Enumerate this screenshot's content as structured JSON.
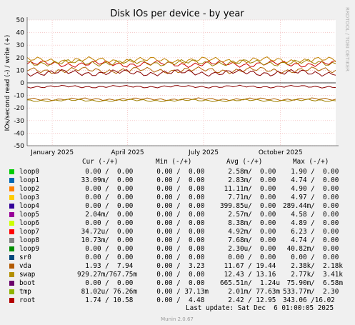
{
  "chart_data": {
    "type": "line",
    "title": "Disk IOs per device - by year",
    "ylabel": "IOs/second read (-) / write (+)",
    "side_label": "RRDTOOL / TOBI OETIKER",
    "ylim": [
      -50,
      50
    ],
    "yticks": [
      -50,
      -40,
      -30,
      -20,
      -10,
      0,
      10,
      20,
      30,
      40,
      50
    ],
    "x_range": [
      "2024-12-02",
      "2025-12-06"
    ],
    "xticks": [
      {
        "label": "January 2025",
        "date": "2025-01-01"
      },
      {
        "label": "April 2025",
        "date": "2025-04-01"
      },
      {
        "label": "July 2025",
        "date": "2025-07-01"
      },
      {
        "label": "October 2025",
        "date": "2025-10-01"
      }
    ],
    "grid": true,
    "series": [
      {
        "name": "loop7",
        "color": "#cc0000",
        "approx_levels": [
          {
            "from": "2024-12-02",
            "to": "2025-12-06",
            "write": 15,
            "read": 0
          }
        ]
      },
      {
        "name": "loop1",
        "color": "#c08000",
        "approx_levels": [
          {
            "from": "2024-12-02",
            "to": "2025-12-06",
            "write": 18,
            "read": 0
          }
        ]
      },
      {
        "name": "vda",
        "color": "#b06000",
        "approx_levels": [
          {
            "from": "2024-12-02",
            "to": "2025-12-06",
            "write": 10,
            "read": -13
          }
        ]
      },
      {
        "name": "tmp",
        "color": "#a08000",
        "approx_levels": [
          {
            "from": "2024-12-02",
            "to": "2025-12-06",
            "write": 16,
            "read": -14
          }
        ]
      },
      {
        "name": "root",
        "color": "#880000",
        "approx_levels": [
          {
            "from": "2024-12-02",
            "to": "2025-12-06",
            "write": 8,
            "read": -3
          }
        ]
      }
    ]
  },
  "footer": "Munin 2.0.67",
  "last_update": "Last update: Sat Dec  6 01:00:05 2025",
  "legend": {
    "headers": {
      "cur": "Cur (-/+)",
      "min": "Min (-/+)",
      "avg": "Avg (-/+)",
      "max": "Max (-/+)"
    },
    "rows": [
      {
        "name": "loop0",
        "color": "#00cc00",
        "cur": "  0.00 /  0.00",
        "min": "  0.00 /  0.00",
        "avg": "  2.58m/  0.00",
        "max": "  1.90 /  0.00"
      },
      {
        "name": "loop1",
        "color": "#0066b3",
        "cur": " 33.09m/  0.00",
        "min": "  0.00 /  0.00",
        "avg": "  2.83m/  0.00",
        "max": "  4.74 /  0.00"
      },
      {
        "name": "loop2",
        "color": "#ff8000",
        "cur": "  0.00 /  0.00",
        "min": "  0.00 /  0.00",
        "avg": " 11.11m/  0.00",
        "max": "  4.90 /  0.00"
      },
      {
        "name": "loop3",
        "color": "#ffcc00",
        "cur": "  0.00 /  0.00",
        "min": "  0.00 /  0.00",
        "avg": "  7.71m/  0.00",
        "max": "  4.97 /  0.00"
      },
      {
        "name": "loop4",
        "color": "#330099",
        "cur": "  0.00 /  0.00",
        "min": "  0.00 /  0.00",
        "avg": "399.85u/  0.00",
        "max": "289.44m/  0.00"
      },
      {
        "name": "loop5",
        "color": "#990099",
        "cur": "  2.04m/  0.00",
        "min": "  0.00 /  0.00",
        "avg": "  2.57m/  0.00",
        "max": "  4.58 /  0.00"
      },
      {
        "name": "loop6",
        "color": "#ccff00",
        "cur": "  0.00 /  0.00",
        "min": "  0.00 /  0.00",
        "avg": "  8.38m/  0.00",
        "max": "  4.89 /  0.00"
      },
      {
        "name": "loop7",
        "color": "#ff0000",
        "cur": " 34.72u/  0.00",
        "min": "  0.00 /  0.00",
        "avg": "  4.92m/  0.00",
        "max": "  6.23 /  0.00"
      },
      {
        "name": "loop8",
        "color": "#808080",
        "cur": " 10.73m/  0.00",
        "min": "  0.00 /  0.00",
        "avg": "  7.68m/  0.00",
        "max": "  4.74 /  0.00"
      },
      {
        "name": "loop9",
        "color": "#008f00",
        "cur": "  0.00 /  0.00",
        "min": "  0.00 /  0.00",
        "avg": "  2.30u/  0.00",
        "max": " 40.82m/  0.00"
      },
      {
        "name": "sr0",
        "color": "#00487d",
        "cur": "  0.00 /  0.00",
        "min": "  0.00 /  0.00",
        "avg": "  0.00 /  0.00",
        "max": "  0.00 /  0.00"
      },
      {
        "name": "vda",
        "color": "#b35a00",
        "cur": "  1.93 /  7.94",
        "min": "  0.00 /  3.23",
        "avg": " 11.67 / 19.44",
        "max": "  2.38k/  2.18k"
      },
      {
        "name": "swap",
        "color": "#b38f00",
        "cur": "929.27m/767.75m",
        "min": "  0.00 /  0.00",
        "avg": " 12.43 / 13.16",
        "max": "  2.77k/  3.41k"
      },
      {
        "name": "boot",
        "color": "#6b006b",
        "cur": "  0.00 /  0.00",
        "min": "  0.00 /  0.00",
        "avg": "665.51n/  1.24u",
        "max": " 75.90m/  6.58m"
      },
      {
        "name": "tmp",
        "color": "#8fb300",
        "cur": " 81.02u/ 76.26m",
        "min": "  0.00 / 37.13m",
        "avg": "  2.01m/ 77.63m",
        "max": "533.77m/  2.30"
      },
      {
        "name": "root",
        "color": "#b30000",
        "cur": "  1.74 / 10.58",
        "min": "  0.00 /  4.48",
        "avg": "  2.42 / 12.95",
        "max": "343.06 /16.02"
      }
    ]
  }
}
